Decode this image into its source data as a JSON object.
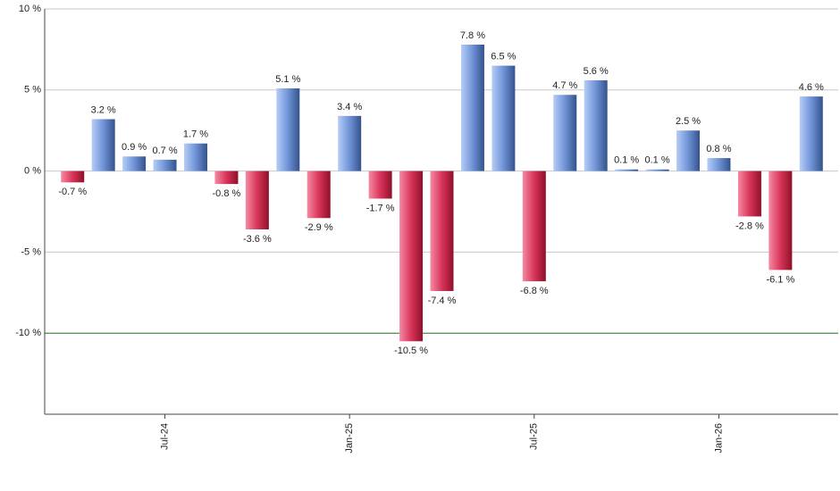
{
  "chart_data": {
    "type": "bar",
    "categories": [
      null,
      null,
      null,
      "Jul-24",
      null,
      null,
      null,
      null,
      null,
      "Jan-25",
      null,
      null,
      null,
      null,
      null,
      "Jul-25",
      null,
      null,
      null,
      null,
      null,
      "Jan-26",
      null,
      null,
      null
    ],
    "values": [
      -0.7,
      3.2,
      0.9,
      0.7,
      1.7,
      -0.8,
      -3.6,
      5.1,
      -2.9,
      3.4,
      -1.7,
      -10.5,
      -7.4,
      7.8,
      6.5,
      -6.8,
      4.7,
      5.6,
      0.1,
      0.1,
      2.5,
      0.8,
      -2.8,
      -6.1,
      4.6
    ],
    "value_labels": [
      "-0.7 %",
      "3.2 %",
      "0.9 %",
      "0.7 %",
      "1.7 %",
      "-0.8 %",
      "-3.6 %",
      "5.1 %",
      "-2.9 %",
      "3.4 %",
      "-1.7 %",
      "-10.5 %",
      "-7.4 %",
      "7.8 %",
      "6.5 %",
      "-6.8 %",
      "4.7 %",
      "5.6 %",
      "0.1 %",
      "0.1 %",
      "2.5 %",
      "0.8 %",
      "-2.8 %",
      "-6.1 %",
      "4.6 %"
    ],
    "positive_color": "#6f93d6",
    "negative_color": "#d8345a",
    "ylim": [
      -15,
      10
    ],
    "yticks": [
      {
        "value": 10,
        "label": "10 %"
      },
      {
        "value": 5,
        "label": "5 %"
      },
      {
        "value": 0,
        "label": "0 %"
      },
      {
        "value": -5,
        "label": "-5 %"
      },
      {
        "value": -10,
        "label": "-10 %"
      }
    ],
    "grid": true,
    "reference_line": -10,
    "reference_color": "#2e7d32"
  }
}
